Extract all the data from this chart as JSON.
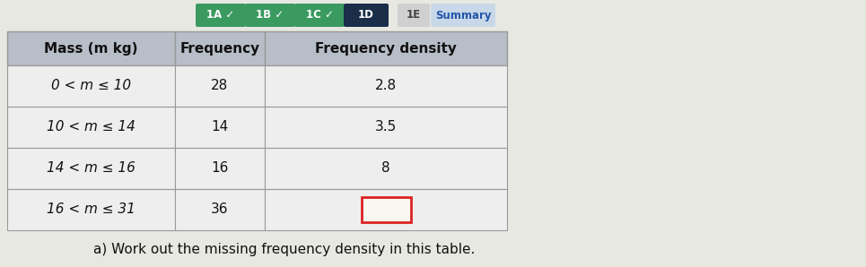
{
  "background_color": "#e8e8e2",
  "nav_buttons": [
    {
      "label": "1A ✓",
      "color": "#3a9a60",
      "text_color": "#ffffff"
    },
    {
      "label": "1B ✓",
      "color": "#3a9a60",
      "text_color": "#ffffff"
    },
    {
      "label": "1C ✓",
      "color": "#3a9a60",
      "text_color": "#ffffff"
    },
    {
      "label": "1D",
      "color": "#1a2e4a",
      "text_color": "#ffffff"
    },
    {
      "label": "1E",
      "color": "#d0d0d0",
      "text_color": "#444444"
    },
    {
      "label": "Summary",
      "color": "#c8d8e8",
      "text_color": "#2255aa"
    }
  ],
  "table_header_bg": "#b8bec8",
  "table_row_bg": "#eeeeee",
  "table_border_color": "#999999",
  "headers": [
    "Mass (m kg)",
    "Frequency",
    "Frequency density"
  ],
  "rows": [
    {
      "mass": "0 < m ≤ 10",
      "frequency": "28",
      "freq_density": "2.8",
      "missing": false
    },
    {
      "mass": "10 < m ≤ 14",
      "frequency": "14",
      "freq_density": "3.5",
      "missing": false
    },
    {
      "mass": "14 < m ≤ 16",
      "frequency": "16",
      "freq_density": "8",
      "missing": false
    },
    {
      "mass": "16 < m ≤ 31",
      "frequency": "36",
      "freq_density": "",
      "missing": true
    }
  ],
  "footnote": "a) Work out the missing frequency density in this table.",
  "fig_width": 9.65,
  "fig_height": 2.98,
  "dpi": 100
}
